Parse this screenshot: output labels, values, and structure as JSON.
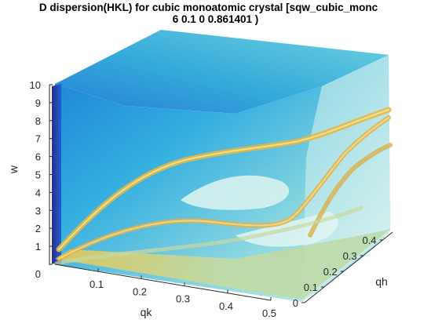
{
  "chart_data": {
    "type": "heatmap",
    "title_line1": "D dispersion(HKL) for cubic monoatomic crystal [sqw_cubic_monc",
    "title_line2": "6 0.1 0 0.861401 )",
    "xlabel": "qk",
    "ylabel": "qh",
    "zlabel": "w",
    "x_ticks": [
      "0.1",
      "0.2",
      "0.3",
      "0.4",
      "0.5"
    ],
    "y_ticks": [
      "0",
      "0.1",
      "0.2",
      "0.3",
      "0.4"
    ],
    "z_ticks": [
      "0",
      "1",
      "2",
      "3",
      "4",
      "5",
      "6",
      "7",
      "8",
      "9",
      "10"
    ],
    "x_range": [
      0,
      0.5
    ],
    "y_range": [
      0,
      0.45
    ],
    "z_range": [
      0,
      10
    ],
    "colormap": "parula",
    "colors": {
      "background": "#ffffff",
      "volume_top": "#35b4d6",
      "volume_left": "#1f8fd8",
      "volume_dark": "#1a3fb0",
      "branch": "#e8b040",
      "base": "#b8d8a8"
    }
  }
}
